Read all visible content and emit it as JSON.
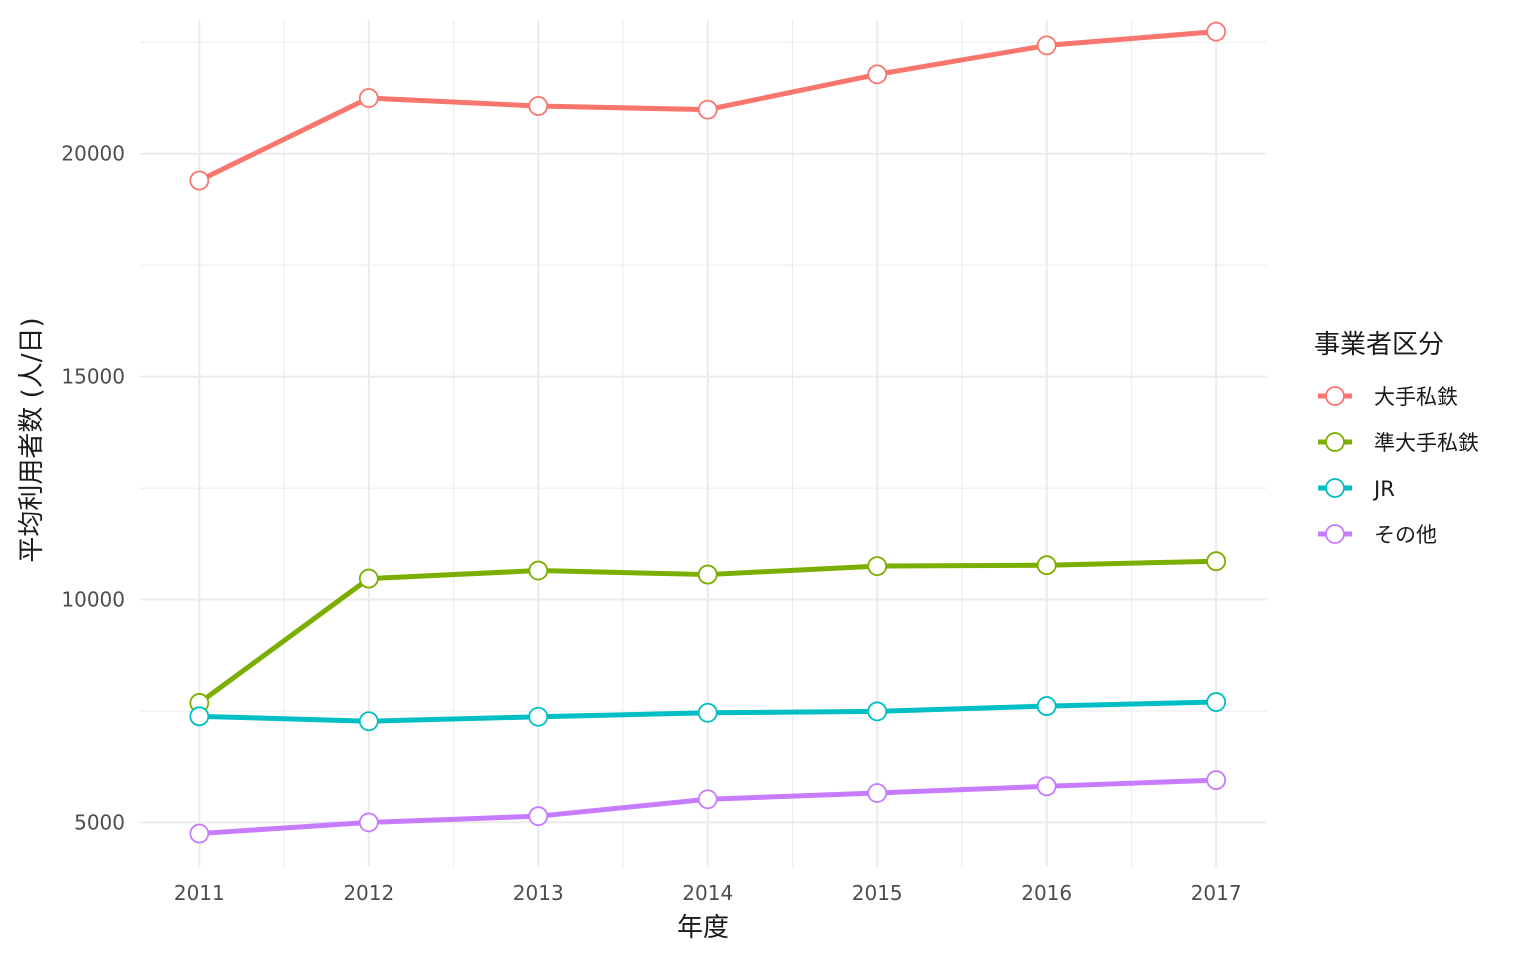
{
  "chart_data": {
    "type": "line",
    "x": [
      2011,
      2012,
      2013,
      2014,
      2015,
      2016,
      2017
    ],
    "xlabel": "年度",
    "ylabel": "平均利用者数 (人/日)",
    "xlim": [
      2010.65,
      2017.3
    ],
    "ylim": [
      4000,
      23000
    ],
    "yticks": [
      5000,
      10000,
      15000,
      20000
    ],
    "grid": true,
    "legend_title": "事業者区分",
    "legend_position": "right",
    "series": [
      {
        "name": "大手私鉄",
        "color": "#F8766D",
        "values": [
          19400,
          21250,
          21070,
          20990,
          21780,
          22430,
          22740
        ]
      },
      {
        "name": "準大手私鉄",
        "color": "#7CAE00",
        "values": [
          7680,
          10470,
          10650,
          10560,
          10750,
          10770,
          10860
        ]
      },
      {
        "name": "JR",
        "color": "#00BFC4",
        "values": [
          7380,
          7270,
          7370,
          7460,
          7490,
          7610,
          7700
        ]
      },
      {
        "name": "その他",
        "color": "#C77CFF",
        "values": [
          4750,
          5000,
          5140,
          5520,
          5660,
          5810,
          5950
        ]
      }
    ]
  }
}
